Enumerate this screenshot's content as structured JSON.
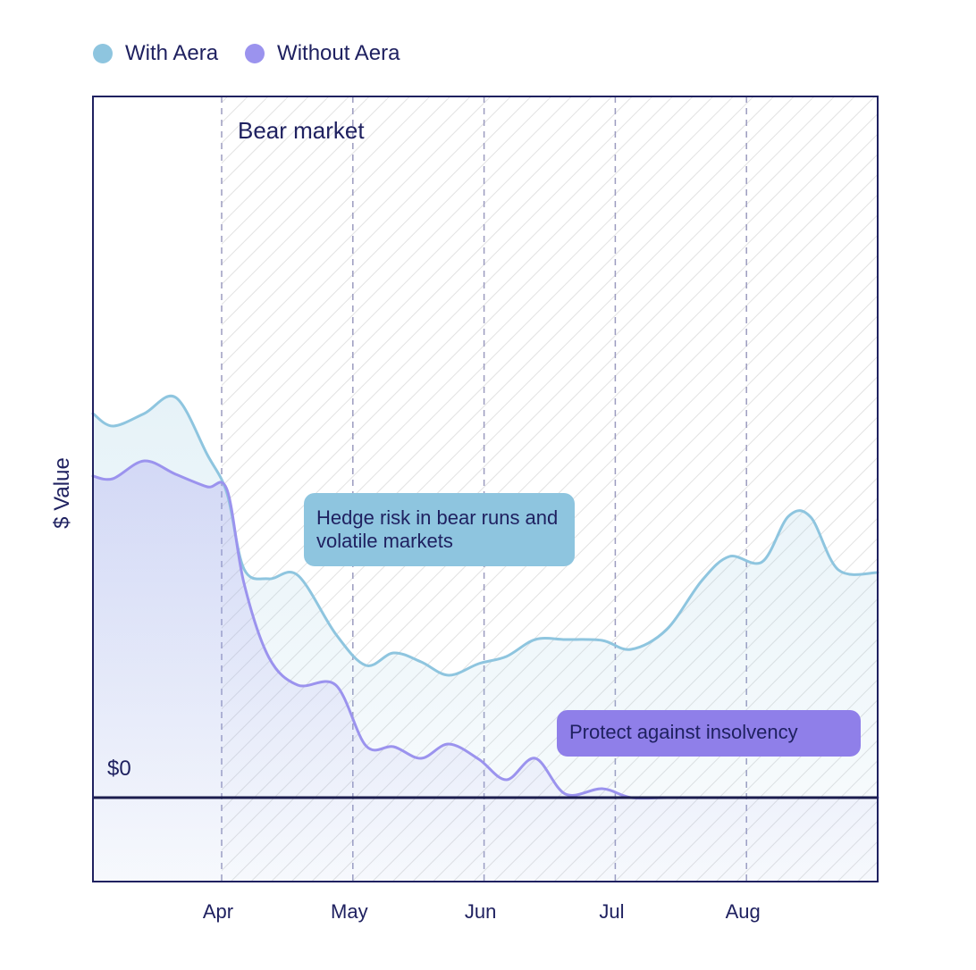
{
  "legend": [
    {
      "label": "With Aera",
      "color": "#8ec5df"
    },
    {
      "label": "Without Aera",
      "color": "#9b93ee"
    }
  ],
  "chart_data": {
    "type": "area",
    "ylabel": "$ Value",
    "xlabel": "",
    "zero_label": "$0",
    "grid": true,
    "legend_position": "top-left",
    "x_ticks": [
      "Apr",
      "May",
      "Jun",
      "Jul",
      "Aug"
    ],
    "x_tick_pos": [
      1,
      2,
      3,
      4,
      5
    ],
    "xlim": [
      0.02,
      6.0
    ],
    "ylim": [
      -0.92,
      7.5
    ],
    "shaded_region": {
      "label": "Bear market",
      "start": 1,
      "end": 6.0
    },
    "annotations": [
      {
        "text": "Hedge risk in bear runs and volatile markets",
        "series": "With Aera"
      },
      {
        "text": "Protect against insolvency",
        "series": "Without Aera"
      }
    ],
    "x": [
      0.0,
      0.17,
      0.41,
      0.65,
      0.89,
      1.04,
      1.17,
      1.36,
      1.58,
      1.87,
      2.1,
      2.31,
      2.52,
      2.73,
      2.96,
      3.17,
      3.39,
      3.62,
      3.9,
      4.12,
      4.39,
      4.66,
      4.87,
      5.12,
      5.32,
      5.49,
      5.7,
      6.0
    ],
    "series": [
      {
        "name": "With Aera",
        "color": "#8ec5df",
        "values": [
          4.3,
          4.16,
          4.3,
          4.48,
          3.84,
          3.41,
          2.56,
          2.45,
          2.49,
          1.83,
          1.48,
          1.62,
          1.52,
          1.37,
          1.5,
          1.58,
          1.77,
          1.77,
          1.76,
          1.66,
          1.88,
          2.43,
          2.7,
          2.64,
          3.15,
          3.14,
          2.55,
          2.52
        ]
      },
      {
        "name": "Without Aera",
        "color": "#9b93ee",
        "values": [
          3.6,
          3.57,
          3.77,
          3.62,
          3.48,
          3.45,
          2.4,
          1.57,
          1.26,
          1.26,
          0.58,
          0.57,
          0.44,
          0.6,
          0.43,
          0.2,
          0.44,
          0.04,
          0.1,
          0.0,
          0.0,
          0.0,
          0.0,
          0.0,
          0.0,
          0.0,
          0.0,
          0.0
        ]
      }
    ]
  }
}
